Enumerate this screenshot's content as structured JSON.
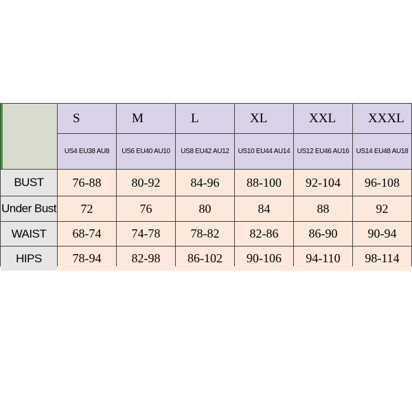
{
  "table": {
    "sizes": [
      "S",
      "M",
      "L",
      "XL",
      "XXL",
      "XXXL"
    ],
    "codes": [
      "US4 EU38 AU8",
      "US6 EU40 AU10",
      "US8 EU42 AU12",
      "US10 EU44 AU14",
      "US12 EU46 AU16",
      "US14 EU48 AU18"
    ],
    "rows": [
      [
        "BUST",
        "76-88",
        "80-92",
        "84-96",
        "88-100",
        "92-104",
        "96-108"
      ],
      [
        "Under Bust",
        "72",
        "76",
        "80",
        "84",
        "88",
        "92"
      ],
      [
        "WAIST",
        "68-74",
        "74-78",
        "78-82",
        "82-86",
        "86-90",
        "90-94"
      ],
      [
        "HIPS",
        "78-94",
        "82-98",
        "86-102",
        "90-106",
        "94-110",
        "98-114"
      ]
    ]
  }
}
